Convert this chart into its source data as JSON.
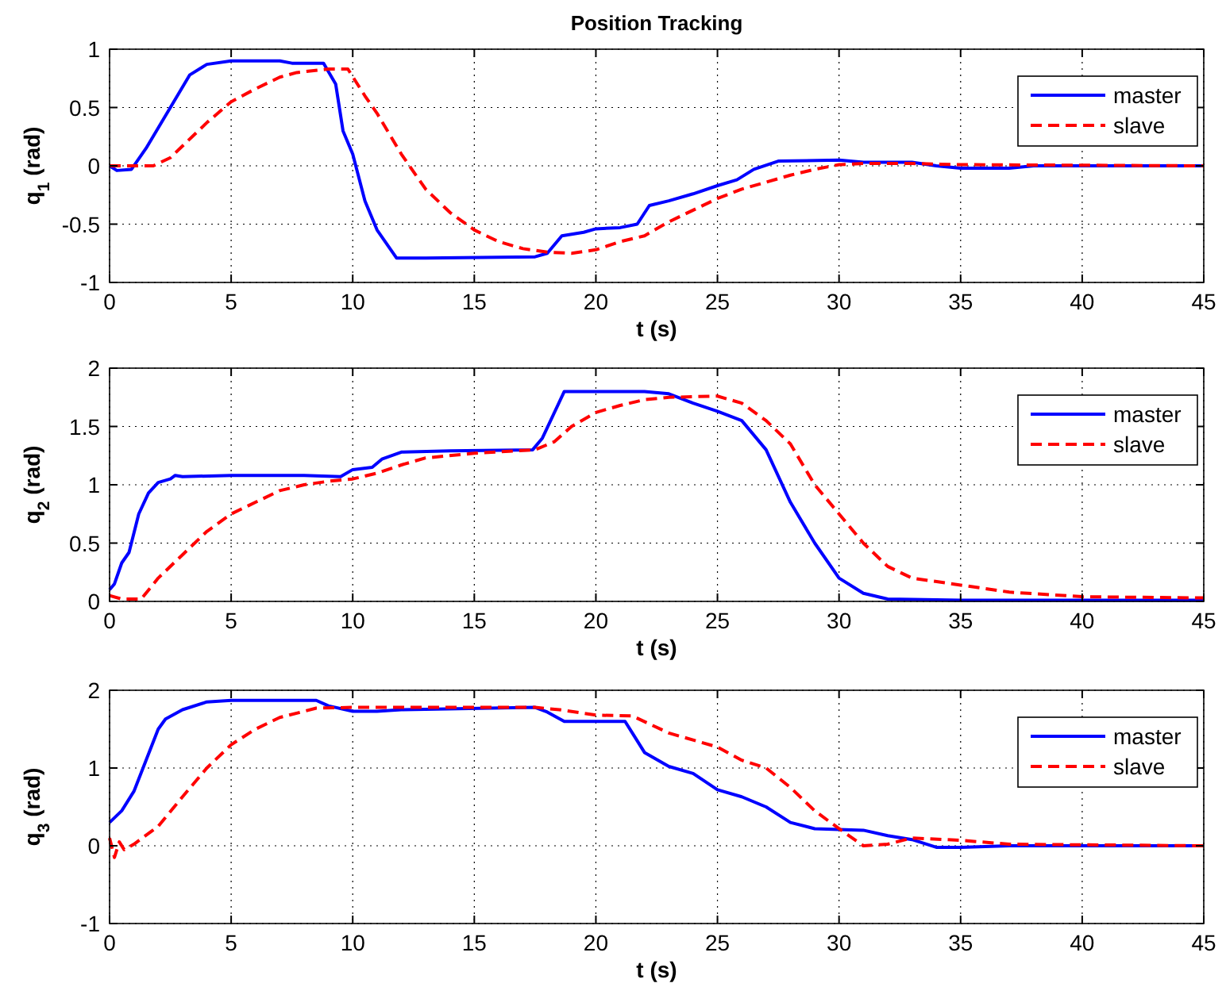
{
  "chart_data": [
    {
      "type": "line",
      "title": "Position Tracking",
      "xlabel": "t  (s)",
      "ylabel": "q$_{1}$  (rad)",
      "xlim": [
        0,
        45
      ],
      "xticks": [
        0,
        5,
        10,
        15,
        20,
        25,
        30,
        35,
        40,
        45
      ],
      "ylim": [
        -1,
        1
      ],
      "yticks": [
        -1,
        -0.5,
        0,
        0.5,
        1
      ],
      "grid": true,
      "legend": "top right",
      "series": [
        {
          "name": "master",
          "color": "#0000ff",
          "line_style": "solid",
          "x": [
            0,
            0.3,
            0.9,
            1.5,
            2.5,
            3.3,
            4,
            5,
            7,
            7.5,
            8.8,
            9.3,
            9.6,
            10,
            10.5,
            11,
            11.8,
            13,
            17.5,
            18,
            18.6,
            19.5,
            20,
            21,
            21.7,
            22.2,
            23,
            24,
            25,
            25.8,
            26.5,
            27.5,
            30,
            31,
            33,
            34,
            35,
            37,
            38,
            45
          ],
          "values": [
            0,
            -0.04,
            -0.03,
            0.15,
            0.5,
            0.78,
            0.87,
            0.9,
            0.9,
            0.88,
            0.88,
            0.7,
            0.3,
            0.1,
            -0.3,
            -0.55,
            -0.79,
            -0.79,
            -0.78,
            -0.75,
            -0.6,
            -0.57,
            -0.54,
            -0.53,
            -0.5,
            -0.34,
            -0.3,
            -0.24,
            -0.17,
            -0.12,
            -0.03,
            0.04,
            0.05,
            0.03,
            0.03,
            0,
            -0.02,
            -0.02,
            0,
            0
          ]
        },
        {
          "name": "slave",
          "color": "#ff0000",
          "line_style": "dashed",
          "x": [
            0,
            1.8,
            2.5,
            3,
            3.5,
            4,
            5,
            6,
            7,
            7.7,
            9,
            9.8,
            10.5,
            11,
            12,
            13,
            14,
            15,
            16,
            17,
            18,
            19,
            20,
            21,
            22,
            23,
            24,
            25,
            26,
            27,
            28,
            29,
            30,
            31,
            33,
            35,
            45
          ],
          "values": [
            0,
            0,
            0.07,
            0.17,
            0.27,
            0.37,
            0.55,
            0.66,
            0.76,
            0.8,
            0.83,
            0.83,
            0.6,
            0.45,
            0.1,
            -0.2,
            -0.4,
            -0.55,
            -0.65,
            -0.71,
            -0.74,
            -0.75,
            -0.72,
            -0.65,
            -0.6,
            -0.48,
            -0.38,
            -0.28,
            -0.2,
            -0.14,
            -0.08,
            -0.03,
            0.01,
            0.02,
            0.02,
            0.01,
            0
          ]
        }
      ]
    },
    {
      "type": "line",
      "xlabel": "t  (s)",
      "ylabel": "q$_{2}$  (rad)",
      "xlim": [
        0,
        45
      ],
      "xticks": [
        0,
        5,
        10,
        15,
        20,
        25,
        30,
        35,
        40,
        45
      ],
      "ylim": [
        0,
        2
      ],
      "yticks": [
        0,
        0.5,
        1,
        1.5,
        2
      ],
      "grid": true,
      "legend": "top right",
      "series": [
        {
          "name": "master",
          "color": "#0000ff",
          "line_style": "solid",
          "x": [
            0,
            0.2,
            0.5,
            0.8,
            1.2,
            1.6,
            2,
            2.5,
            2.7,
            3,
            5,
            8,
            9.5,
            10,
            10.8,
            11.2,
            12,
            14,
            17.4,
            17.8,
            18.7,
            22,
            23,
            24,
            25,
            26,
            27,
            28,
            29,
            30,
            31,
            32,
            35,
            45
          ],
          "values": [
            0.1,
            0.15,
            0.33,
            0.42,
            0.75,
            0.93,
            1.02,
            1.05,
            1.08,
            1.07,
            1.08,
            1.08,
            1.07,
            1.13,
            1.15,
            1.22,
            1.28,
            1.29,
            1.3,
            1.4,
            1.8,
            1.8,
            1.78,
            1.7,
            1.63,
            1.55,
            1.3,
            0.85,
            0.5,
            0.2,
            0.07,
            0.02,
            0.01,
            0.01
          ]
        },
        {
          "name": "slave",
          "color": "#ff0000",
          "line_style": "dashed",
          "x": [
            0,
            0.5,
            1.3,
            2,
            3,
            4,
            5,
            6,
            7,
            8,
            9,
            10,
            11,
            12,
            13,
            15,
            17.5,
            18.3,
            19,
            20,
            21,
            22,
            23,
            25,
            26,
            27,
            28,
            29,
            30,
            31,
            32,
            33,
            35,
            37,
            40,
            45
          ],
          "values": [
            0.05,
            0.02,
            0.02,
            0.2,
            0.4,
            0.6,
            0.75,
            0.85,
            0.95,
            1,
            1.03,
            1.05,
            1.1,
            1.17,
            1.23,
            1.27,
            1.3,
            1.37,
            1.5,
            1.62,
            1.68,
            1.73,
            1.75,
            1.76,
            1.7,
            1.55,
            1.35,
            1,
            0.75,
            0.5,
            0.3,
            0.2,
            0.14,
            0.08,
            0.04,
            0.03
          ]
        }
      ]
    },
    {
      "type": "line",
      "xlabel": "t  (s)",
      "ylabel": "q$_{3}$  (rad)",
      "xlim": [
        0,
        45
      ],
      "xticks": [
        0,
        5,
        10,
        15,
        20,
        25,
        30,
        35,
        40,
        45
      ],
      "ylim": [
        -1,
        2
      ],
      "yticks": [
        -1,
        0,
        1,
        2
      ],
      "grid": true,
      "legend": "top right",
      "series": [
        {
          "name": "master",
          "color": "#0000ff",
          "line_style": "solid",
          "x": [
            0,
            0.5,
            1,
            1.5,
            2,
            2.3,
            3,
            4,
            5,
            8.5,
            9,
            10,
            11,
            12,
            17.5,
            18,
            18.7,
            20,
            21.2,
            21.5,
            22,
            23,
            24,
            25,
            26,
            27,
            28,
            29,
            30,
            31,
            32,
            33,
            34,
            35,
            37,
            45
          ],
          "values": [
            0.3,
            0.45,
            0.7,
            1.1,
            1.5,
            1.63,
            1.75,
            1.85,
            1.87,
            1.87,
            1.8,
            1.73,
            1.73,
            1.75,
            1.78,
            1.72,
            1.6,
            1.6,
            1.6,
            1.45,
            1.2,
            1.02,
            0.93,
            0.72,
            0.63,
            0.5,
            0.3,
            0.22,
            0.21,
            0.2,
            0.13,
            0.08,
            -0.02,
            -0.02,
            0,
            0
          ]
        },
        {
          "name": "slave",
          "color": "#ff0000",
          "line_style": "dashed",
          "x": [
            0,
            0.2,
            0.4,
            0.6,
            1,
            2,
            3,
            4,
            5,
            6,
            7,
            8.5,
            10,
            17.5,
            18.5,
            20,
            21.5,
            23,
            25,
            26,
            27,
            28,
            29,
            30,
            31,
            32,
            33,
            35,
            37,
            45
          ],
          "values": [
            0.1,
            -0.15,
            0.05,
            -0.05,
            0.02,
            0.25,
            0.63,
            1,
            1.3,
            1.5,
            1.65,
            1.77,
            1.78,
            1.78,
            1.75,
            1.68,
            1.67,
            1.45,
            1.27,
            1.1,
            1,
            0.75,
            0.45,
            0.22,
            0,
            0.02,
            0.1,
            0.07,
            0.02,
            0
          ]
        }
      ]
    }
  ]
}
